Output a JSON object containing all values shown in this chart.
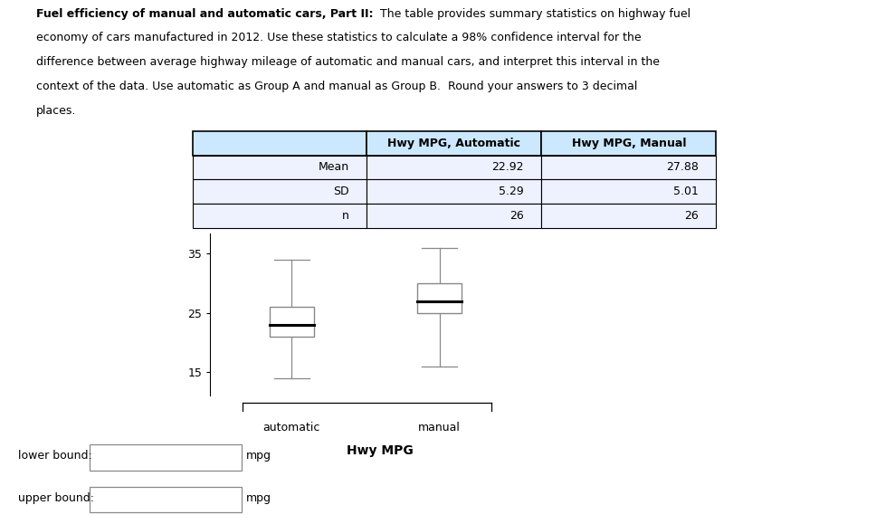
{
  "line1_bold": "Fuel efficiency of manual and automatic cars, Part II:",
  "line1_normal": "  The table provides summary statistics on highway fuel",
  "line2": "economy of cars manufactured in 2012. Use these statistics to calculate a 98% confidence interval for the",
  "line3": "difference between average highway mileage of automatic and manual cars, and interpret this interval in the",
  "line4": "context of the data. Use automatic as Group A and manual as Group B.  Round your answers to 3 decimal",
  "line5": "places.",
  "table_col_headers": [
    "",
    "Hwy MPG, Automatic",
    "Hwy MPG, Manual"
  ],
  "table_rows": [
    [
      "Mean",
      "22.92",
      "27.88"
    ],
    [
      "SD",
      "5.29",
      "5.01"
    ],
    [
      "n",
      "26",
      "26"
    ]
  ],
  "table_header_bg": "#cce8ff",
  "table_row_bg": "#eef2ff",
  "bp_auto_whisker_low": 14,
  "bp_auto_whisker_high": 34,
  "bp_auto_q1": 21,
  "bp_auto_median": 23,
  "bp_auto_q3": 26,
  "bp_manual_whisker_low": 16,
  "bp_manual_whisker_high": 36,
  "bp_manual_q1": 25,
  "bp_manual_median": 27,
  "bp_manual_q3": 30,
  "yticks": [
    15,
    25,
    35
  ],
  "plot_xlabel": "Hwy MPG",
  "xticklabels": [
    "automatic",
    "manual"
  ],
  "lower_bound_label": "lower bound:",
  "upper_bound_label": "upper bound:",
  "mpg_label": "mpg",
  "box_facecolor": "white",
  "box_edgecolor": "#888888",
  "median_color": "black",
  "whisker_color": "#888888",
  "bg_color": "white",
  "text_fontsize": 9.0,
  "table_fontsize": 9.0
}
